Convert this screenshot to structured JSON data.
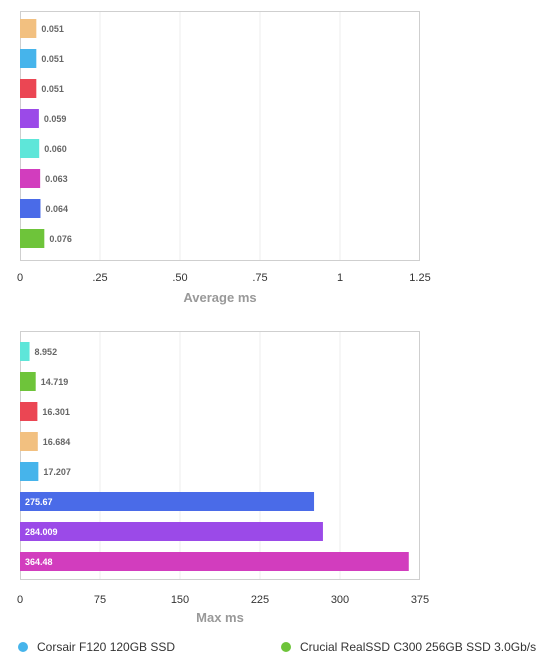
{
  "chart_data": [
    {
      "type": "bar",
      "orientation": "horizontal",
      "xlabel": "Average ms",
      "xlim": [
        0,
        1.25
      ],
      "ticks": [
        0,
        0.25,
        0.5,
        0.75,
        1,
        1.25
      ],
      "tick_labels": [
        "0",
        ".25",
        ".50",
        ".75",
        "1",
        "1.25"
      ],
      "grid": true,
      "bars": [
        {
          "value": 0.051,
          "label": "0.051",
          "color": "#F2C080"
        },
        {
          "value": 0.051,
          "label": "0.051",
          "color": "#46B4EB"
        },
        {
          "value": 0.051,
          "label": "0.051",
          "color": "#EB4653"
        },
        {
          "value": 0.059,
          "label": "0.059",
          "color": "#9B4AE8"
        },
        {
          "value": 0.06,
          "label": "0.060",
          "color": "#5EE6D9"
        },
        {
          "value": 0.063,
          "label": "0.063",
          "color": "#D23DBE"
        },
        {
          "value": 0.064,
          "label": "0.064",
          "color": "#4A6BE8"
        },
        {
          "value": 0.076,
          "label": "0.076",
          "color": "#6EC43A"
        }
      ]
    },
    {
      "type": "bar",
      "orientation": "horizontal",
      "xlabel": "Max ms",
      "xlim": [
        0,
        375
      ],
      "ticks": [
        0,
        75,
        150,
        225,
        300,
        375
      ],
      "tick_labels": [
        "0",
        "75",
        "150",
        "225",
        "300",
        "375"
      ],
      "grid": true,
      "bars": [
        {
          "value": 8.952,
          "label": "8.952",
          "color": "#5EE6D9"
        },
        {
          "value": 14.719,
          "label": "14.719",
          "color": "#6EC43A"
        },
        {
          "value": 16.301,
          "label": "16.301",
          "color": "#EB4653"
        },
        {
          "value": 16.684,
          "label": "16.684",
          "color": "#F2C080"
        },
        {
          "value": 17.207,
          "label": "17.207",
          "color": "#46B4EB"
        },
        {
          "value": 275.67,
          "label": "275.67",
          "color": "#4A6BE8"
        },
        {
          "value": 284.009,
          "label": "284.009",
          "color": "#9B4AE8"
        },
        {
          "value": 364.48,
          "label": "364.48",
          "color": "#D23DBE"
        }
      ]
    }
  ],
  "legend": [
    {
      "name": "Corsair F120 120GB SSD",
      "color": "#46B4EB"
    },
    {
      "name": "Crucial RealSSD C300 256GB SSD 3.0Gb/s",
      "color": "#6EC43A"
    }
  ]
}
